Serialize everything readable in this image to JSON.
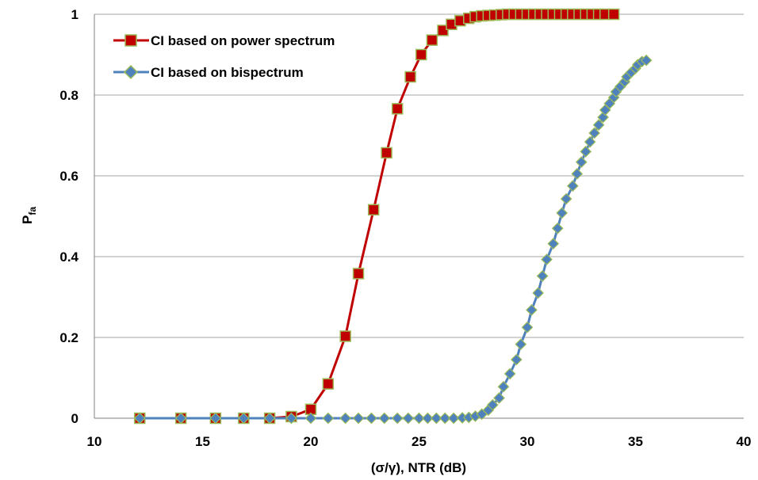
{
  "chart_data": {
    "type": "line",
    "title": "",
    "xlabel": "(σ/γ),  NTR (dB)",
    "ylabel": {
      "main": "P",
      "sub": "fa"
    },
    "xlim": [
      10,
      40
    ],
    "ylim": [
      0,
      1
    ],
    "xticks": [
      "10",
      "15",
      "20",
      "25",
      "30",
      "35",
      "40"
    ],
    "yticks": [
      "0",
      "0.2",
      "0.4",
      "0.6",
      "0.8",
      "1"
    ],
    "grid": "horizontal",
    "legend_position": "top-left",
    "series": [
      {
        "name": "CI based on power spectrum",
        "color": "#c00000",
        "marker": "square",
        "marker_fill": "#c00000",
        "marker_edge": "#9bbb59",
        "points": [
          [
            12.1,
            0
          ],
          [
            14.0,
            0
          ],
          [
            15.6,
            0
          ],
          [
            16.9,
            0
          ],
          [
            18.1,
            0
          ],
          [
            19.1,
            0.004
          ],
          [
            20.0,
            0.022
          ],
          [
            20.8,
            0.085
          ],
          [
            21.6,
            0.203
          ],
          [
            22.2,
            0.358
          ],
          [
            22.9,
            0.516
          ],
          [
            23.5,
            0.657
          ],
          [
            24.0,
            0.766
          ],
          [
            24.6,
            0.845
          ],
          [
            25.1,
            0.9
          ],
          [
            25.6,
            0.936
          ],
          [
            26.1,
            0.96
          ],
          [
            26.5,
            0.975
          ],
          [
            26.9,
            0.984
          ],
          [
            27.3,
            0.99
          ],
          [
            27.6,
            0.994
          ],
          [
            27.9,
            0.996
          ],
          [
            28.2,
            0.997
          ],
          [
            28.5,
            0.998
          ],
          [
            28.8,
            0.999
          ],
          [
            29.1,
            1
          ],
          [
            29.4,
            1
          ],
          [
            29.7,
            1
          ],
          [
            30.0,
            1
          ],
          [
            30.3,
            1
          ],
          [
            30.6,
            1
          ],
          [
            30.9,
            1
          ],
          [
            31.2,
            1
          ],
          [
            31.5,
            1
          ],
          [
            31.8,
            1
          ],
          [
            32.1,
            1
          ],
          [
            32.4,
            1
          ],
          [
            32.7,
            1
          ],
          [
            33.0,
            1
          ],
          [
            33.3,
            1
          ],
          [
            33.6,
            1
          ],
          [
            34.0,
            1
          ]
        ]
      },
      {
        "name": "CI based on bispectrum",
        "color": "#4f81bd",
        "marker": "diamond",
        "marker_fill": "#4f81bd",
        "marker_edge": "#9bbb59",
        "points": [
          [
            12.1,
            0
          ],
          [
            14.0,
            0
          ],
          [
            15.6,
            0
          ],
          [
            16.9,
            0
          ],
          [
            18.1,
            0
          ],
          [
            19.1,
            0
          ],
          [
            20.0,
            0
          ],
          [
            20.8,
            0
          ],
          [
            21.6,
            0
          ],
          [
            22.2,
            0
          ],
          [
            22.8,
            0
          ],
          [
            23.4,
            0
          ],
          [
            24.0,
            0
          ],
          [
            24.5,
            0
          ],
          [
            25.0,
            0
          ],
          [
            25.4,
            0
          ],
          [
            25.8,
            0
          ],
          [
            26.2,
            0
          ],
          [
            26.6,
            0
          ],
          [
            27.0,
            0.001
          ],
          [
            27.3,
            0.002
          ],
          [
            27.6,
            0.005
          ],
          [
            27.9,
            0.01
          ],
          [
            28.2,
            0.02
          ],
          [
            28.4,
            0.033
          ],
          [
            28.7,
            0.05
          ],
          [
            28.9,
            0.078
          ],
          [
            29.2,
            0.11
          ],
          [
            29.5,
            0.145
          ],
          [
            29.7,
            0.183
          ],
          [
            30.0,
            0.225
          ],
          [
            30.2,
            0.268
          ],
          [
            30.5,
            0.31
          ],
          [
            30.7,
            0.352
          ],
          [
            30.9,
            0.393
          ],
          [
            31.2,
            0.432
          ],
          [
            31.4,
            0.47
          ],
          [
            31.6,
            0.508
          ],
          [
            31.8,
            0.543
          ],
          [
            32.1,
            0.575
          ],
          [
            32.3,
            0.605
          ],
          [
            32.5,
            0.634
          ],
          [
            32.7,
            0.66
          ],
          [
            32.9,
            0.684
          ],
          [
            33.1,
            0.706
          ],
          [
            33.3,
            0.726
          ],
          [
            33.5,
            0.745
          ],
          [
            33.6,
            0.763
          ],
          [
            33.8,
            0.779
          ],
          [
            34.0,
            0.794
          ],
          [
            34.1,
            0.808
          ],
          [
            34.3,
            0.821
          ],
          [
            34.5,
            0.833
          ],
          [
            34.6,
            0.845
          ],
          [
            34.8,
            0.856
          ],
          [
            35.0,
            0.866
          ],
          [
            35.1,
            0.875
          ],
          [
            35.3,
            0.883
          ],
          [
            35.5,
            0.886
          ]
        ]
      }
    ]
  }
}
